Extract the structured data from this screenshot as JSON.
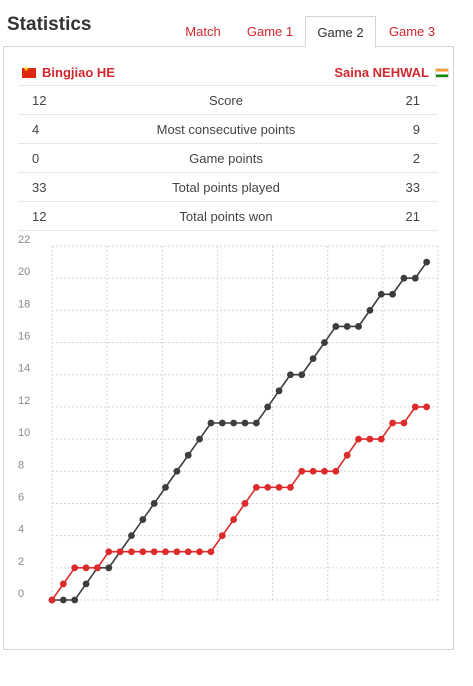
{
  "header": {
    "title": "Statistics"
  },
  "tabs": [
    {
      "label": "Match",
      "active": false
    },
    {
      "label": "Game 1",
      "active": false
    },
    {
      "label": "Game 2",
      "active": true
    },
    {
      "label": "Game 3",
      "active": false
    }
  ],
  "players": {
    "left": {
      "name": "Bingjiao HE",
      "flag": "china-flag-icon"
    },
    "right": {
      "name": "Saina NEHWAL",
      "flag": "india-flag-icon"
    }
  },
  "stats": [
    {
      "left": "12",
      "label": "Score",
      "right": "21"
    },
    {
      "left": "4",
      "label": "Most consecutive points",
      "right": "9"
    },
    {
      "left": "0",
      "label": "Game points",
      "right": "2"
    },
    {
      "left": "33",
      "label": "Total points played",
      "right": "33"
    },
    {
      "left": "12",
      "label": "Total points won",
      "right": "21"
    }
  ],
  "colors": {
    "accent": "#d0282e",
    "left_series": "#dd2a2a",
    "right_series": "#3d3d3d"
  },
  "chart_data": {
    "type": "line",
    "title": "",
    "xlabel": "",
    "ylabel": "",
    "ylim": [
      0,
      22
    ],
    "y_ticks": [
      "0",
      "2",
      "4",
      "6",
      "8",
      "10",
      "12",
      "14",
      "16",
      "18",
      "20",
      "22"
    ],
    "grid": true,
    "x": [
      0,
      1,
      2,
      3,
      4,
      5,
      6,
      7,
      8,
      9,
      10,
      11,
      12,
      13,
      14,
      15,
      16,
      17,
      18,
      19,
      20,
      21,
      22,
      23,
      24,
      25,
      26,
      27,
      28,
      29,
      30,
      31,
      32,
      33
    ],
    "series": [
      {
        "name": "Bingjiao HE",
        "color": "#dd2a2a",
        "values": [
          0,
          1,
          2,
          2,
          2,
          3,
          3,
          3,
          3,
          3,
          3,
          3,
          3,
          3,
          3,
          4,
          5,
          6,
          7,
          7,
          7,
          7,
          8,
          8,
          8,
          8,
          9,
          10,
          10,
          10,
          11,
          11,
          12,
          12
        ]
      },
      {
        "name": "Saina NEHWAL",
        "color": "#3d3d3d",
        "values": [
          0,
          0,
          0,
          1,
          2,
          2,
          3,
          4,
          5,
          6,
          7,
          8,
          9,
          10,
          11,
          11,
          11,
          11,
          11,
          12,
          13,
          14,
          14,
          15,
          16,
          17,
          17,
          17,
          18,
          19,
          19,
          20,
          20,
          21
        ]
      }
    ]
  }
}
